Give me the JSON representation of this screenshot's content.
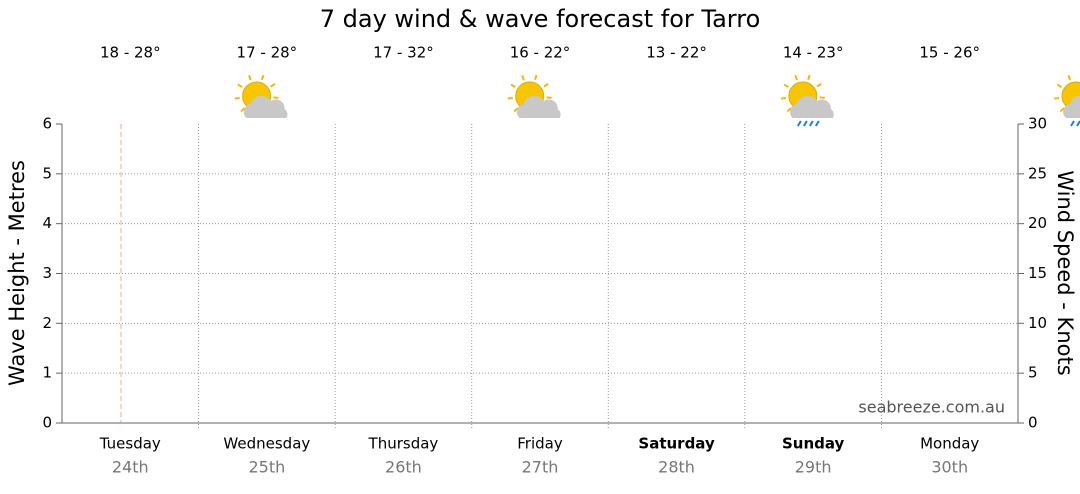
{
  "chart_data": {
    "type": "line",
    "title": "7 day wind & wave forecast for Tarro",
    "y_label": "Wave Height - Metres",
    "y2_label": "Wind Speed - Knots",
    "categories": [
      "Tuesday",
      "Wednesday",
      "Thursday",
      "Friday",
      "Saturday",
      "Sunday",
      "Monday"
    ],
    "dates": [
      "24th",
      "25th",
      "26th",
      "27th",
      "28th",
      "29th",
      "30th"
    ],
    "temperatures": [
      "18 - 28°",
      "17 - 28°",
      "17 - 32°",
      "16 - 22°",
      "13 - 22°",
      "14 - 23°",
      "15 - 26°"
    ],
    "watermark": "seabreeze.com.au",
    "ylim": [
      0,
      6
    ],
    "yticks": [
      0,
      1,
      2,
      3,
      4,
      5,
      6
    ],
    "y2lim": [
      0,
      30
    ],
    "y2ticks": [
      0,
      5,
      10,
      15,
      20,
      25,
      30
    ],
    "grid": true,
    "series": []
  }
}
